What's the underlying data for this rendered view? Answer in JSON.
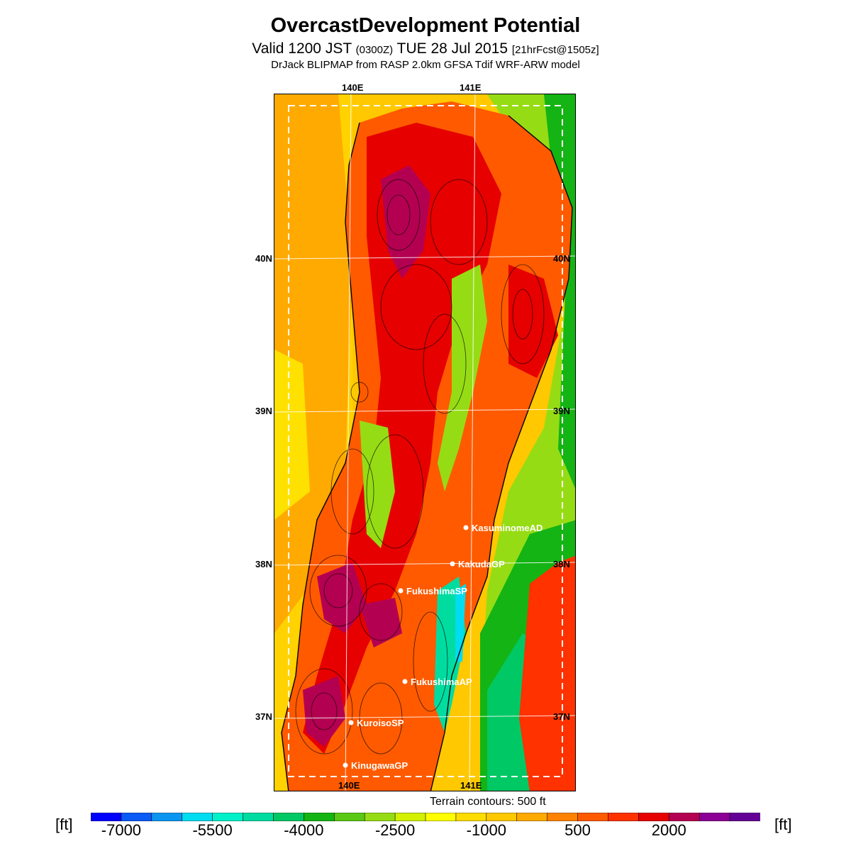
{
  "header": {
    "title": "OvercastDevelopment Potential",
    "valid_prefix": "Valid 1200 JST",
    "utc": "(0300Z)",
    "date": "TUE 28 Jul 2015",
    "fcst": "[21hrFcst@1505z]",
    "model": "DrJack BLIPMAP from RASP 2.0km GFSA Tdif WRF-ARW model"
  },
  "map": {
    "lon_labels": [
      "140E",
      "141E"
    ],
    "lat_labels": [
      "40N",
      "39N",
      "38N",
      "37N"
    ],
    "sites": [
      {
        "name": "KasuminomeAD"
      },
      {
        "name": "KakudaGP"
      },
      {
        "name": "FukushimaSP"
      },
      {
        "name": "FukushimaAP"
      },
      {
        "name": "KuroisoSP"
      },
      {
        "name": "KinugawaGP"
      }
    ],
    "contour_note": "Terrain contours: 500 ft"
  },
  "colorbar": {
    "unit": "[ft]",
    "colors": [
      "#0000ff",
      "#0a5af5",
      "#0a96f0",
      "#00dcf0",
      "#00f0c8",
      "#00dca0",
      "#00c864",
      "#14b414",
      "#5ac814",
      "#96dc14",
      "#d2f000",
      "#ffff00",
      "#ffdc00",
      "#ffc800",
      "#ffaa00",
      "#ff8200",
      "#ff5a00",
      "#ff3200",
      "#e60000",
      "#b40050",
      "#8c0096",
      "#640096"
    ],
    "tick_values": [
      "-7000",
      "-5500",
      "-4000",
      "-2500",
      "-1000",
      "500",
      "2000"
    ]
  }
}
